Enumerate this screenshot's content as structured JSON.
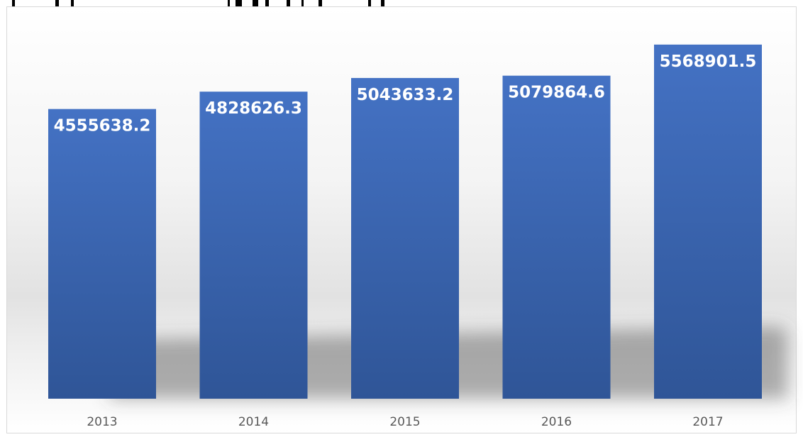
{
  "chart_data": {
    "type": "bar",
    "categories": [
      "2013",
      "2014",
      "2015",
      "2016",
      "2017"
    ],
    "values": [
      4555638.2,
      4828626.3,
      5043633.2,
      5079864.6,
      5568901.5
    ],
    "value_labels": [
      "4555638.2",
      "4828626.3",
      "5043633.2",
      "5079864.6",
      "5568901.5"
    ],
    "title": "",
    "xlabel": "",
    "ylabel": "",
    "ylim": [
      0,
      5980000
    ],
    "grid": false,
    "legend": "none"
  },
  "colors": {
    "bar_top": "#4472c4",
    "bar_bottom": "#2f5597",
    "data_label": "#ffffff",
    "tick_label": "#595959"
  }
}
